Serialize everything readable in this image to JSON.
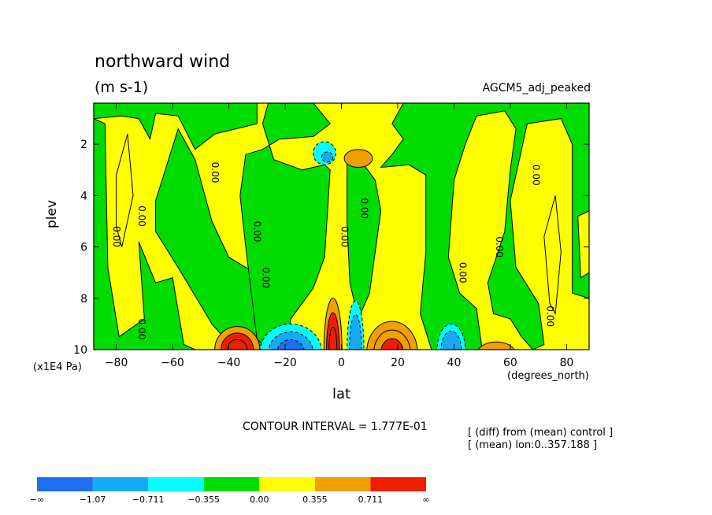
{
  "header": {
    "title": "northward wind",
    "units": "(m s-1)",
    "run_name": "AGCM5_adj_peaked"
  },
  "footer": {
    "contour_interval": "CONTOUR INTERVAL = 1.777E-01",
    "note_diff": "[ (diff) from (mean) control ]",
    "note_mean": "[ (mean) lon:0..357.188 ]"
  },
  "chart_data": {
    "type": "heatmap",
    "title": "northward wind",
    "units": "(m s-1)",
    "xlabel": "lat",
    "x_units": "(degrees_north)",
    "ylabel": "plev",
    "y_units": "(x1E4 Pa)",
    "xlim": [
      -88,
      88
    ],
    "ylim": [
      10,
      0.4
    ],
    "x_ticks": [
      -80,
      -60,
      -40,
      -20,
      0,
      20,
      40,
      60,
      80
    ],
    "x_tick_labels": [
      "−80",
      "−60",
      "−40",
      "−20",
      "0",
      "20",
      "40",
      "60",
      "80"
    ],
    "y_ticks": [
      2,
      4,
      6,
      8,
      10
    ],
    "y_tick_labels": [
      "2",
      "4",
      "6",
      "8",
      "10"
    ],
    "contour_interval": 0.1777,
    "zero_contour_label": "0.00",
    "zero_label_positions": [
      {
        "lat": -81,
        "plev": 5.6
      },
      {
        "lat": -72,
        "plev": 4.8
      },
      {
        "lat": -46,
        "plev": 3.1
      },
      {
        "lat": -31,
        "plev": 5.4
      },
      {
        "lat": -28,
        "plev": 7.2
      },
      {
        "lat": 0,
        "plev": 5.6
      },
      {
        "lat": 7,
        "plev": 4.5
      },
      {
        "lat": 42,
        "plev": 7.0
      },
      {
        "lat": 55,
        "plev": 6.0
      },
      {
        "lat": 68,
        "plev": 3.2
      },
      {
        "lat": 73,
        "plev": 8.7
      },
      {
        "lat": -72,
        "plev": 9.2
      }
    ],
    "colorbar": {
      "levels": [
        "−∞",
        "−1.07",
        "−0.711",
        "−0.355",
        "0.00",
        "0.355",
        "0.711",
        "∞"
      ],
      "colors": [
        "#1e6ef0",
        "#14aaf5",
        "#00ffff",
        "#00dc00",
        "#ffff00",
        "#f0a000",
        "#f01e00"
      ]
    },
    "regions": [
      {
        "name": "background-positive",
        "sign": "+",
        "value_range": [
          0.0,
          0.355
        ]
      },
      {
        "name": "negative-band-west",
        "sign": "-",
        "value_range": [
          -0.355,
          0.0
        ]
      },
      {
        "name": "surface-max-40S",
        "lat": -37,
        "plev": 9.8,
        "value_range": [
          0.711,
          1.0
        ]
      },
      {
        "name": "surface-min-20S",
        "lat": -18,
        "plev": 9.7,
        "value_range": [
          -1.07,
          -0.711
        ]
      },
      {
        "name": "surface-max-4S",
        "lat": -3,
        "plev": 9.3,
        "value_range": [
          0.711,
          1.0
        ]
      },
      {
        "name": "surface-min-4N",
        "lat": 5,
        "plev": 9.5,
        "value_range": [
          -0.711,
          -0.355
        ]
      },
      {
        "name": "surface-max-18N",
        "lat": 18,
        "plev": 9.8,
        "value_range": [
          0.711,
          1.0
        ]
      },
      {
        "name": "surface-min-40N",
        "lat": 39,
        "plev": 9.6,
        "value_range": [
          -0.711,
          -0.355
        ]
      },
      {
        "name": "surface-max-55N",
        "lat": 55,
        "plev": 9.9,
        "value_range": [
          0.355,
          0.711
        ]
      },
      {
        "name": "upper-min-6S",
        "lat": -6,
        "plev": 2.4,
        "value_range": [
          -0.711,
          -0.355
        ]
      },
      {
        "name": "upper-max-6N",
        "lat": 6,
        "plev": 2.6,
        "value_range": [
          0.355,
          0.711
        ]
      }
    ]
  }
}
